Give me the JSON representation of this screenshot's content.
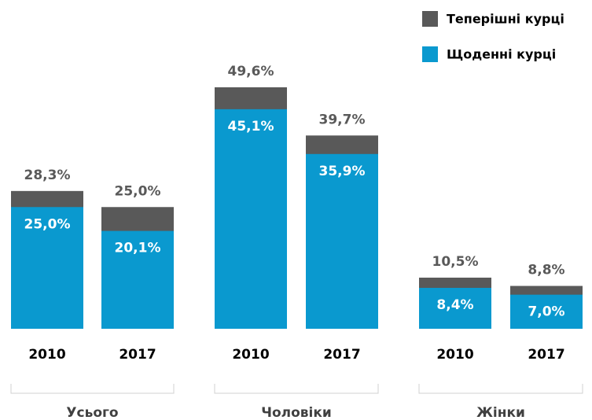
{
  "chart_data": {
    "type": "bar",
    "categories": [
      "2010",
      "2017",
      "2010",
      "2017",
      "2010",
      "2017"
    ],
    "groups": [
      "Усього",
      "Чоловіки",
      "Жінки"
    ],
    "series": [
      {
        "name": "Теперішні курці",
        "color": "#595959",
        "values": [
          28.3,
          25.0,
          49.6,
          39.7,
          10.5,
          8.8
        ],
        "value_labels": [
          "28,3%",
          "25,0%",
          "49,6%",
          "39,7%",
          "10,5%",
          "8,8%"
        ]
      },
      {
        "name": "Щоденні курці",
        "color": "#0a99cf",
        "values": [
          25.0,
          20.1,
          45.1,
          35.9,
          8.4,
          7.0
        ],
        "value_labels": [
          "25,0%",
          "20,1%",
          "45,1%",
          "35,9%",
          "8,4%",
          "7,0%"
        ]
      }
    ],
    "legend": "top-right"
  }
}
